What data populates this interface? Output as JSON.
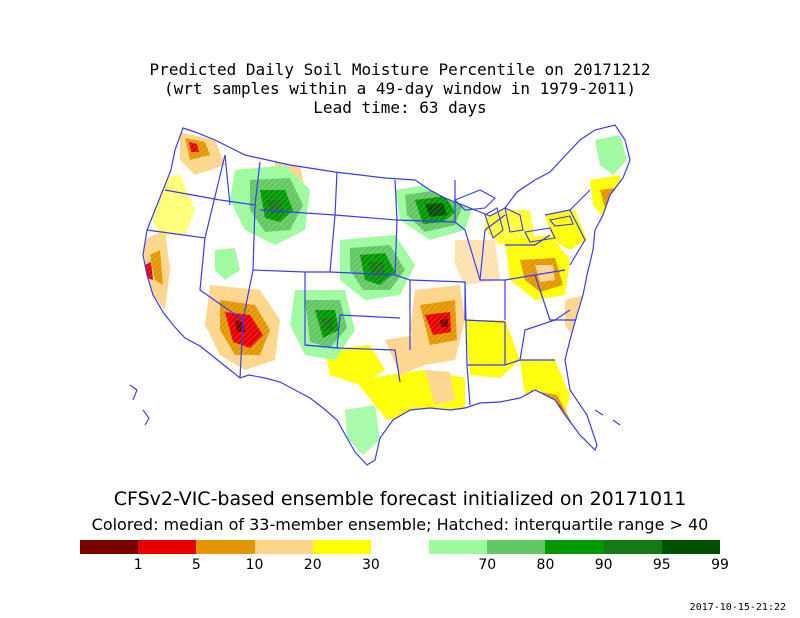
{
  "title": {
    "line1": "Predicted Daily Soil Moisture Percentile on 20171212",
    "line2": "(wrt samples within a 49-day window in 1979-2011)",
    "line3": "Lead time: 63 days"
  },
  "subtitle1": "CFSv2-VIC-based ensemble forecast initialized on 20171011",
  "subtitle2": "Colored: median of 33-member ensemble; Hatched: interquartile range > 40",
  "timestamp": "2017-10-15-21:22",
  "legend": {
    "swatch_colors": [
      "#7a0000",
      "#e80000",
      "#e39600",
      "#fdd58a",
      "#ffff00",
      "#ffffff",
      "#9dfa9d",
      "#63c763",
      "#009900",
      "#157a15",
      "#005000"
    ],
    "ticks": [
      "1",
      "5",
      "10",
      "20",
      "30",
      "70",
      "80",
      "90",
      "95",
      "99"
    ]
  },
  "colors": {
    "boundary": "#3a3aff",
    "dry_extreme": "#7a0000",
    "dry_severe": "#e80000",
    "dry_moderate": "#e39600",
    "dry_mild": "#fdd58a",
    "dry_slight": "#ffff00",
    "wet_slight": "#9dfa9d",
    "wet_mild": "#63c763",
    "wet_moderate": "#009900",
    "wet_severe": "#157a15",
    "wet_extreme": "#005000"
  }
}
